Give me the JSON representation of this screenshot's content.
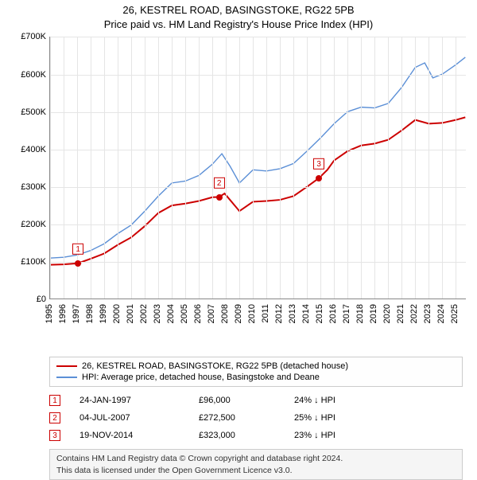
{
  "title": {
    "line1": "26, KESTREL ROAD, BASINGSTOKE, RG22 5PB",
    "line2": "Price paid vs. HM Land Registry's House Price Index (HPI)",
    "fontsize": 13,
    "color": "#000000"
  },
  "chart": {
    "type": "line",
    "background_color": "#ffffff",
    "grid_color": "#e5e5e5",
    "axis_color": "#888888",
    "x": {
      "min": 1995,
      "max": 2025.8,
      "ticks": [
        1995,
        1996,
        1997,
        1998,
        1999,
        2000,
        2001,
        2002,
        2003,
        2004,
        2005,
        2006,
        2007,
        2008,
        2009,
        2010,
        2011,
        2012,
        2013,
        2014,
        2015,
        2016,
        2017,
        2018,
        2019,
        2020,
        2021,
        2022,
        2023,
        2024,
        2025
      ],
      "label_fontsize": 11,
      "label_rotation": -90
    },
    "y": {
      "min": 0,
      "max": 700000,
      "ticks": [
        0,
        100000,
        200000,
        300000,
        400000,
        500000,
        600000,
        700000
      ],
      "tick_labels": [
        "£0",
        "£100K",
        "£200K",
        "£300K",
        "£400K",
        "£500K",
        "£600K",
        "£700K"
      ],
      "label_fontsize": 11
    },
    "series": [
      {
        "id": "price_paid",
        "label": "26, KESTREL ROAD, BASINGSTOKE, RG22 5PB (detached house)",
        "color": "#cc0000",
        "line_width": 2,
        "data": [
          [
            1995.0,
            92000
          ],
          [
            1996.0,
            93000
          ],
          [
            1997.07,
            96000
          ],
          [
            1998.0,
            108000
          ],
          [
            1999.0,
            122000
          ],
          [
            2000.0,
            145000
          ],
          [
            2001.0,
            165000
          ],
          [
            2002.0,
            195000
          ],
          [
            2003.0,
            230000
          ],
          [
            2004.0,
            250000
          ],
          [
            2005.0,
            255000
          ],
          [
            2006.0,
            262000
          ],
          [
            2007.0,
            272000
          ],
          [
            2007.5,
            272500
          ],
          [
            2007.9,
            282000
          ],
          [
            2008.3,
            265000
          ],
          [
            2009.0,
            235000
          ],
          [
            2010.0,
            260000
          ],
          [
            2011.0,
            262000
          ],
          [
            2012.0,
            265000
          ],
          [
            2013.0,
            275000
          ],
          [
            2014.0,
            300000
          ],
          [
            2014.88,
            323000
          ],
          [
            2015.5,
            345000
          ],
          [
            2016.0,
            370000
          ],
          [
            2017.0,
            395000
          ],
          [
            2018.0,
            410000
          ],
          [
            2019.0,
            415000
          ],
          [
            2020.0,
            425000
          ],
          [
            2021.0,
            450000
          ],
          [
            2022.0,
            478000
          ],
          [
            2023.0,
            468000
          ],
          [
            2024.0,
            470000
          ],
          [
            2025.0,
            478000
          ],
          [
            2025.7,
            485000
          ]
        ]
      },
      {
        "id": "hpi",
        "label": "HPI: Average price, detached house, Basingstoke and Deane",
        "color": "#5b8fd6",
        "line_width": 1.4,
        "data": [
          [
            1995.0,
            110000
          ],
          [
            1996.0,
            112000
          ],
          [
            1997.0,
            118000
          ],
          [
            1998.0,
            130000
          ],
          [
            1999.0,
            148000
          ],
          [
            2000.0,
            175000
          ],
          [
            2001.0,
            198000
          ],
          [
            2002.0,
            235000
          ],
          [
            2003.0,
            275000
          ],
          [
            2004.0,
            310000
          ],
          [
            2005.0,
            315000
          ],
          [
            2006.0,
            330000
          ],
          [
            2007.0,
            360000
          ],
          [
            2007.7,
            388000
          ],
          [
            2008.3,
            355000
          ],
          [
            2009.0,
            310000
          ],
          [
            2010.0,
            345000
          ],
          [
            2011.0,
            342000
          ],
          [
            2012.0,
            348000
          ],
          [
            2013.0,
            362000
          ],
          [
            2014.0,
            395000
          ],
          [
            2015.0,
            430000
          ],
          [
            2016.0,
            468000
          ],
          [
            2017.0,
            500000
          ],
          [
            2018.0,
            512000
          ],
          [
            2019.0,
            510000
          ],
          [
            2020.0,
            522000
          ],
          [
            2021.0,
            565000
          ],
          [
            2022.0,
            618000
          ],
          [
            2022.7,
            630000
          ],
          [
            2023.3,
            590000
          ],
          [
            2024.0,
            600000
          ],
          [
            2025.0,
            625000
          ],
          [
            2025.7,
            645000
          ]
        ]
      }
    ],
    "markers": [
      {
        "n": "1",
        "x": 1997.07,
        "y": 96000
      },
      {
        "n": "2",
        "x": 2007.5,
        "y": 272500
      },
      {
        "n": "3",
        "x": 2014.88,
        "y": 323000
      }
    ]
  },
  "legend": {
    "border_color": "#cccccc",
    "fontsize": 11
  },
  "events": [
    {
      "n": "1",
      "date": "24-JAN-1997",
      "price": "£96,000",
      "diff": "24% ↓ HPI"
    },
    {
      "n": "2",
      "date": "04-JUL-2007",
      "price": "£272,500",
      "diff": "25% ↓ HPI"
    },
    {
      "n": "3",
      "date": "19-NOV-2014",
      "price": "£323,000",
      "diff": "23% ↓ HPI"
    }
  ],
  "footer": {
    "line1": "Contains HM Land Registry data © Crown copyright and database right 2024.",
    "line2": "This data is licensed under the Open Government Licence v3.0.",
    "background_color": "#f5f5f5",
    "border_color": "#cccccc",
    "fontsize": 10.5
  }
}
